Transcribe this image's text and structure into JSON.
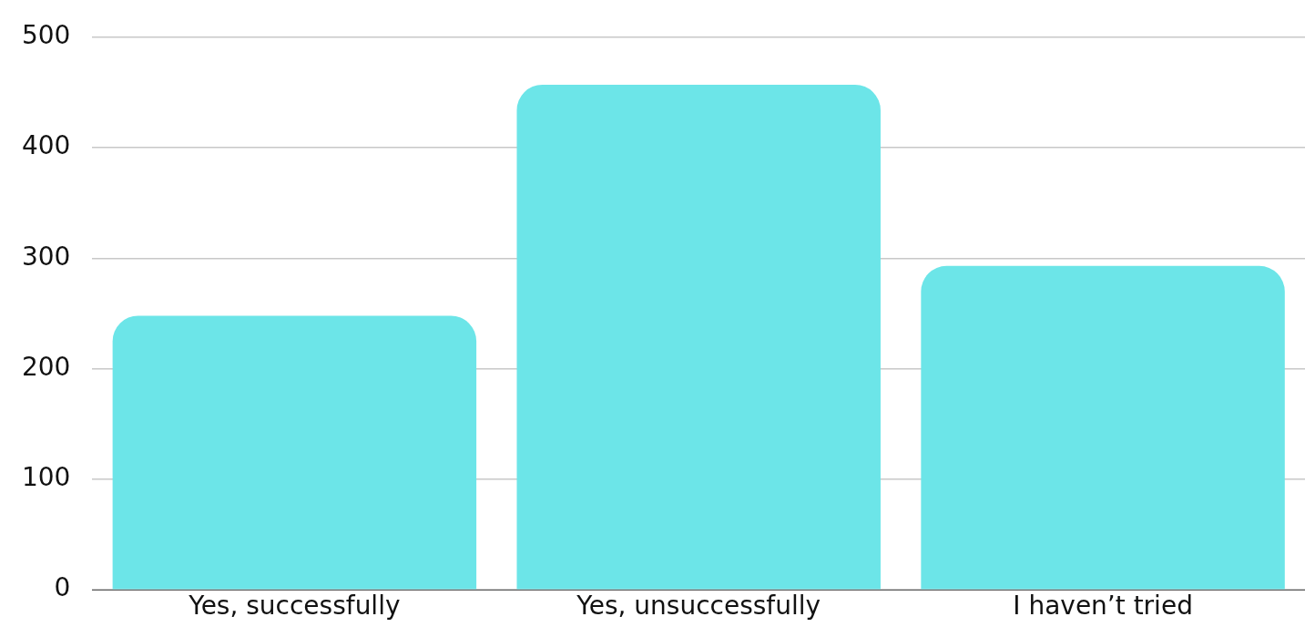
{
  "chart_data": {
    "type": "bar",
    "categories": [
      "Yes, successfully",
      "Yes, unsuccessfully",
      "I haven’t tried"
    ],
    "values": [
      248,
      457,
      293
    ],
    "color": "#6ce5e8",
    "ylim": [
      0,
      500
    ],
    "yticks": [
      0,
      100,
      200,
      300,
      400,
      500
    ],
    "grid": "y",
    "legend": false
  }
}
